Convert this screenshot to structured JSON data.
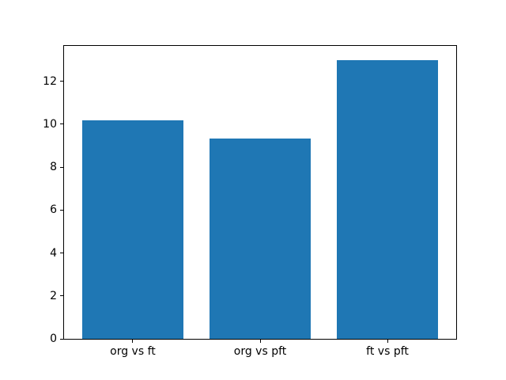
{
  "figure": {
    "background": "#ffffff",
    "spine_color": "#000000",
    "text_color": "#000000"
  },
  "chart_data": {
    "type": "bar",
    "title": "",
    "xlabel": "",
    "ylabel": "",
    "categories": [
      "org vs ft",
      "org vs pft",
      "ft vs pft"
    ],
    "values": [
      10.2,
      9.33,
      13.0
    ],
    "bar_color": "#1f77b4",
    "bar_width": 0.8,
    "xlim": [
      -0.54,
      2.54
    ],
    "ylim": [
      0,
      13.65
    ],
    "yticks": [
      0,
      2,
      4,
      6,
      8,
      10,
      12
    ],
    "grid": false,
    "legend": null
  }
}
